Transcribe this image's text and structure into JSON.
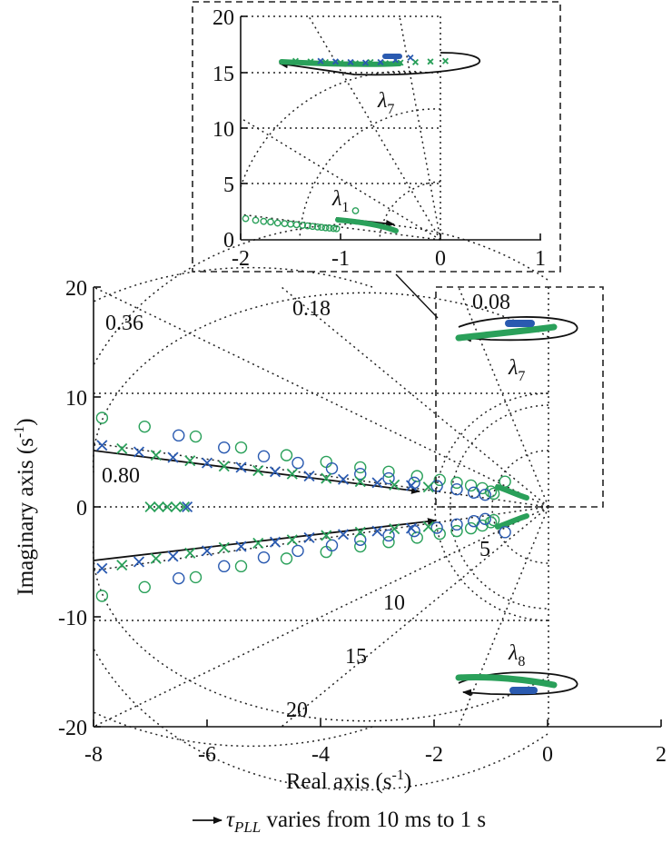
{
  "chart_data": {
    "type": "scatter",
    "main": {
      "xlabel": "Real axis (s",
      "xlabel_sup": "-1",
      "xlabel_end": ")",
      "ylabel": "Imaginary axis (s",
      "ylabel_sup": "-1",
      "ylabel_end": ")",
      "xlim": [
        -8,
        2
      ],
      "ylim": [
        -20,
        20
      ],
      "xticks": [
        "-8",
        "-6",
        "-4",
        "-2",
        "0",
        "2"
      ],
      "yticks": [
        "20",
        "10",
        "0",
        "-10",
        "-20"
      ],
      "damping_labels": [
        "0.08",
        "0.18",
        "0.36",
        "0.80"
      ],
      "frequency_labels": [
        "5",
        "10",
        "15",
        "20"
      ],
      "eigen_labels": [
        {
          "name": "λ",
          "sub": "7"
        },
        {
          "name": "λ",
          "sub": "8"
        }
      ]
    },
    "inset": {
      "xlim": [
        -2,
        1
      ],
      "ylim": [
        0,
        20
      ],
      "xticks": [
        "-2",
        "-1",
        "0",
        "1"
      ],
      "yticks": [
        "20",
        "15",
        "10",
        "5",
        "0"
      ],
      "eigen_labels": [
        {
          "name": "λ",
          "sub": "7"
        },
        {
          "name": "λ",
          "sub": "1"
        }
      ]
    },
    "series": [
      {
        "marker": "circle",
        "color": "#2aa05a",
        "points": [
          [
            -7.85,
            8.1
          ],
          [
            -7.1,
            7.3
          ],
          [
            -6.2,
            6.4
          ],
          [
            -5.4,
            5.4
          ],
          [
            -4.6,
            4.7
          ],
          [
            -3.9,
            4.1
          ],
          [
            -3.3,
            3.6
          ],
          [
            -2.8,
            3.2
          ],
          [
            -2.3,
            2.8
          ],
          [
            -1.9,
            2.45
          ],
          [
            -1.6,
            2.2
          ],
          [
            -1.35,
            1.95
          ],
          [
            -1.15,
            1.7
          ],
          [
            -1.0,
            1.4
          ],
          [
            -0.95,
            1.2
          ],
          [
            -7.85,
            -8.1
          ],
          [
            -7.1,
            -7.3
          ],
          [
            -6.2,
            -6.4
          ],
          [
            -5.4,
            -5.4
          ],
          [
            -4.6,
            -4.7
          ],
          [
            -3.9,
            -4.1
          ],
          [
            -3.3,
            -3.6
          ],
          [
            -2.8,
            -3.2
          ],
          [
            -2.3,
            -2.8
          ],
          [
            -1.9,
            -2.45
          ],
          [
            -1.6,
            -2.2
          ],
          [
            -1.35,
            -1.95
          ],
          [
            -1.15,
            -1.7
          ],
          [
            -1.0,
            -1.4
          ],
          [
            -0.95,
            -1.2
          ],
          [
            -0.75,
            2.3
          ]
        ]
      },
      {
        "marker": "circle",
        "color": "#2a5ab0",
        "points": [
          [
            -6.5,
            6.5
          ],
          [
            -5.7,
            5.4
          ],
          [
            -5.0,
            4.6
          ],
          [
            -4.4,
            4.0
          ],
          [
            -3.8,
            3.5
          ],
          [
            -3.3,
            3.0
          ],
          [
            -2.8,
            2.6
          ],
          [
            -2.35,
            2.2
          ],
          [
            -1.95,
            1.9
          ],
          [
            -1.6,
            1.6
          ],
          [
            -1.3,
            1.3
          ],
          [
            -1.1,
            1.1
          ],
          [
            -6.5,
            -6.5
          ],
          [
            -5.7,
            -5.4
          ],
          [
            -5.0,
            -4.6
          ],
          [
            -4.4,
            -4.0
          ],
          [
            -3.8,
            -3.5
          ],
          [
            -3.3,
            -3.0
          ],
          [
            -2.8,
            -2.6
          ],
          [
            -2.35,
            -2.2
          ],
          [
            -1.95,
            -1.9
          ],
          [
            -1.6,
            -1.6
          ],
          [
            -1.3,
            -1.3
          ],
          [
            -1.1,
            -1.1
          ],
          [
            -0.75,
            -2.3
          ]
        ]
      },
      {
        "marker": "x",
        "color": "#2aa05a",
        "points": [
          [
            -7.5,
            5.3
          ],
          [
            -6.9,
            4.7
          ],
          [
            -6.3,
            4.2
          ],
          [
            -5.7,
            3.7
          ],
          [
            -5.1,
            3.3
          ],
          [
            -4.5,
            3.0
          ],
          [
            -3.9,
            2.6
          ],
          [
            -3.3,
            2.3
          ],
          [
            -2.7,
            2.0
          ],
          [
            -2.1,
            1.8
          ],
          [
            -7.5,
            -5.3
          ],
          [
            -6.9,
            -4.7
          ],
          [
            -6.3,
            -4.2
          ],
          [
            -5.7,
            -3.7
          ],
          [
            -5.1,
            -3.3
          ],
          [
            -4.5,
            -3.0
          ],
          [
            -3.9,
            -2.6
          ],
          [
            -3.3,
            -2.3
          ],
          [
            -2.7,
            -2.0
          ],
          [
            -2.1,
            -1.8
          ],
          [
            -7.0,
            0
          ],
          [
            -6.85,
            0
          ],
          [
            -6.7,
            0
          ],
          [
            -6.55,
            0
          ],
          [
            -6.4,
            0
          ]
        ]
      },
      {
        "marker": "x",
        "color": "#2a5ab0",
        "points": [
          [
            -7.85,
            5.6
          ],
          [
            -7.2,
            5.0
          ],
          [
            -6.6,
            4.5
          ],
          [
            -6.0,
            4.0
          ],
          [
            -5.4,
            3.6
          ],
          [
            -4.8,
            3.2
          ],
          [
            -4.2,
            2.8
          ],
          [
            -3.6,
            2.5
          ],
          [
            -3.0,
            2.2
          ],
          [
            -2.4,
            1.95
          ],
          [
            -7.85,
            -5.6
          ],
          [
            -7.2,
            -5.0
          ],
          [
            -6.6,
            -4.5
          ],
          [
            -6.0,
            -4.0
          ],
          [
            -5.4,
            -3.6
          ],
          [
            -4.8,
            -3.2
          ],
          [
            -4.2,
            -2.8
          ],
          [
            -3.6,
            -2.5
          ],
          [
            -3.0,
            -2.2
          ],
          [
            -2.4,
            -1.95
          ],
          [
            -6.35,
            0
          ]
        ]
      }
    ],
    "inset_series": [
      {
        "marker": "circle",
        "color": "#2aa05a",
        "points": [
          [
            -1.95,
            1.9
          ],
          [
            -1.85,
            1.75
          ],
          [
            -1.77,
            1.65
          ],
          [
            -1.7,
            1.6
          ],
          [
            -1.63,
            1.5
          ],
          [
            -1.56,
            1.45
          ],
          [
            -1.5,
            1.4
          ],
          [
            -1.44,
            1.35
          ],
          [
            -1.38,
            1.3
          ],
          [
            -1.33,
            1.25
          ],
          [
            -1.28,
            1.2
          ],
          [
            -1.23,
            1.15
          ],
          [
            -1.19,
            1.12
          ],
          [
            -1.15,
            1.08
          ],
          [
            -1.11,
            1.05
          ],
          [
            -1.07,
            1.02
          ],
          [
            -1.04,
            1.0
          ],
          [
            -0.85,
            2.6
          ]
        ]
      },
      {
        "marker": "x",
        "color": "#2aa05a",
        "points": [
          [
            -1.45,
            16.0
          ],
          [
            -1.3,
            15.95
          ],
          [
            -1.15,
            15.9
          ],
          [
            -1.0,
            15.85
          ],
          [
            -0.85,
            15.8
          ],
          [
            -0.7,
            15.9
          ],
          [
            -0.55,
            15.8
          ],
          [
            -0.4,
            15.85
          ],
          [
            -0.25,
            15.9
          ],
          [
            -0.1,
            15.95
          ],
          [
            0.05,
            16.0
          ]
        ]
      },
      {
        "marker": "x",
        "color": "#2a5ab0",
        "points": [
          [
            -1.2,
            16.0
          ],
          [
            -1.05,
            15.95
          ],
          [
            -0.9,
            15.9
          ],
          [
            -0.75,
            15.85
          ],
          [
            -0.6,
            15.9
          ],
          [
            -0.45,
            16.1
          ],
          [
            -0.3,
            16.3
          ]
        ]
      }
    ]
  }
}
